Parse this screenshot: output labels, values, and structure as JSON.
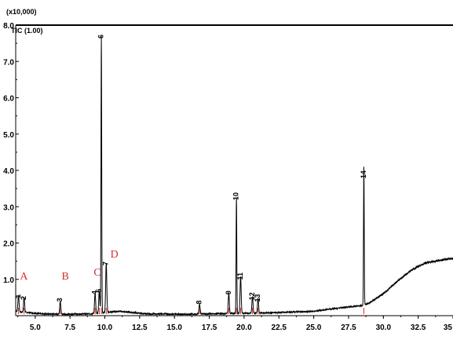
{
  "chart_data": {
    "type": "line",
    "title": "",
    "xlabel": "",
    "ylabel": "",
    "y_multiplier_label": "(x10,000)",
    "trace_label": "TIC (1.00)",
    "x_range": [
      3.6,
      35.0
    ],
    "ylim": [
      0,
      8.0
    ],
    "x_ticks": [
      {
        "value": 5.0,
        "label": "5.0"
      },
      {
        "value": 7.5,
        "label": "7.5"
      },
      {
        "value": 10.0,
        "label": "10.0"
      },
      {
        "value": 12.5,
        "label": "12.5"
      },
      {
        "value": 15.0,
        "label": "15.0"
      },
      {
        "value": 17.5,
        "label": "17.5"
      },
      {
        "value": 20.0,
        "label": "20.0"
      },
      {
        "value": 22.5,
        "label": "22.5"
      },
      {
        "value": 25.0,
        "label": "25.0"
      },
      {
        "value": 27.5,
        "label": "27.5"
      },
      {
        "value": 30.0,
        "label": "30.0"
      },
      {
        "value": 32.5,
        "label": "32.5"
      },
      {
        "value": 35.0,
        "label": "35"
      }
    ],
    "y_ticks": [
      {
        "value": 1.0,
        "label": "1.0"
      },
      {
        "value": 2.0,
        "label": "2.0"
      },
      {
        "value": 3.0,
        "label": "3.0"
      },
      {
        "value": 4.0,
        "label": "4.0"
      },
      {
        "value": 5.0,
        "label": "5.0"
      },
      {
        "value": 6.0,
        "label": "6.0"
      },
      {
        "value": 7.0,
        "label": "7.0"
      },
      {
        "value": 8.0,
        "label": "8.0"
      }
    ],
    "baseline": [
      [
        3.6,
        0.12
      ],
      [
        5.5,
        0.05
      ],
      [
        7.0,
        0.04
      ],
      [
        9.0,
        0.05
      ],
      [
        11.0,
        0.12
      ],
      [
        13.0,
        0.05
      ],
      [
        16.0,
        0.04
      ],
      [
        19.0,
        0.06
      ],
      [
        22.0,
        0.08
      ],
      [
        25.0,
        0.12
      ],
      [
        27.0,
        0.22
      ],
      [
        28.5,
        0.28
      ],
      [
        29.0,
        0.35
      ],
      [
        30.0,
        0.6
      ],
      [
        31.0,
        0.95
      ],
      [
        32.0,
        1.25
      ],
      [
        33.0,
        1.45
      ],
      [
        34.0,
        1.52
      ],
      [
        35.0,
        1.58
      ]
    ],
    "peaks": [
      {
        "rt": 3.8,
        "height": 0.45,
        "label": "1"
      },
      {
        "rt": 4.2,
        "height": 0.4,
        "label": "2"
      },
      {
        "rt": 6.8,
        "height": 0.35,
        "label": "3"
      },
      {
        "rt": 9.3,
        "height": 0.55,
        "label": "4"
      },
      {
        "rt": 9.6,
        "height": 0.6,
        "label": "5"
      },
      {
        "rt": 9.75,
        "height": 7.6,
        "label": "6"
      },
      {
        "rt": 10.1,
        "height": 1.35,
        "label": "7"
      },
      {
        "rt": 16.8,
        "height": 0.28,
        "label": "8"
      },
      {
        "rt": 18.9,
        "height": 0.55,
        "label": "9"
      },
      {
        "rt": 19.45,
        "height": 3.2,
        "label": "10"
      },
      {
        "rt": 19.75,
        "height": 1.0,
        "label": "11"
      },
      {
        "rt": 20.6,
        "height": 0.45,
        "label": "12"
      },
      {
        "rt": 21.0,
        "height": 0.4,
        "label": "13"
      },
      {
        "rt": 28.6,
        "height": 3.8,
        "label": "14"
      }
    ],
    "regions": [
      {
        "label": "A",
        "x": 3.9,
        "y": 1.0
      },
      {
        "label": "B",
        "x": 6.9,
        "y": 1.0
      },
      {
        "label": "C",
        "x": 9.2,
        "y": 1.1
      },
      {
        "label": "D",
        "x": 10.4,
        "y": 1.6
      }
    ]
  }
}
